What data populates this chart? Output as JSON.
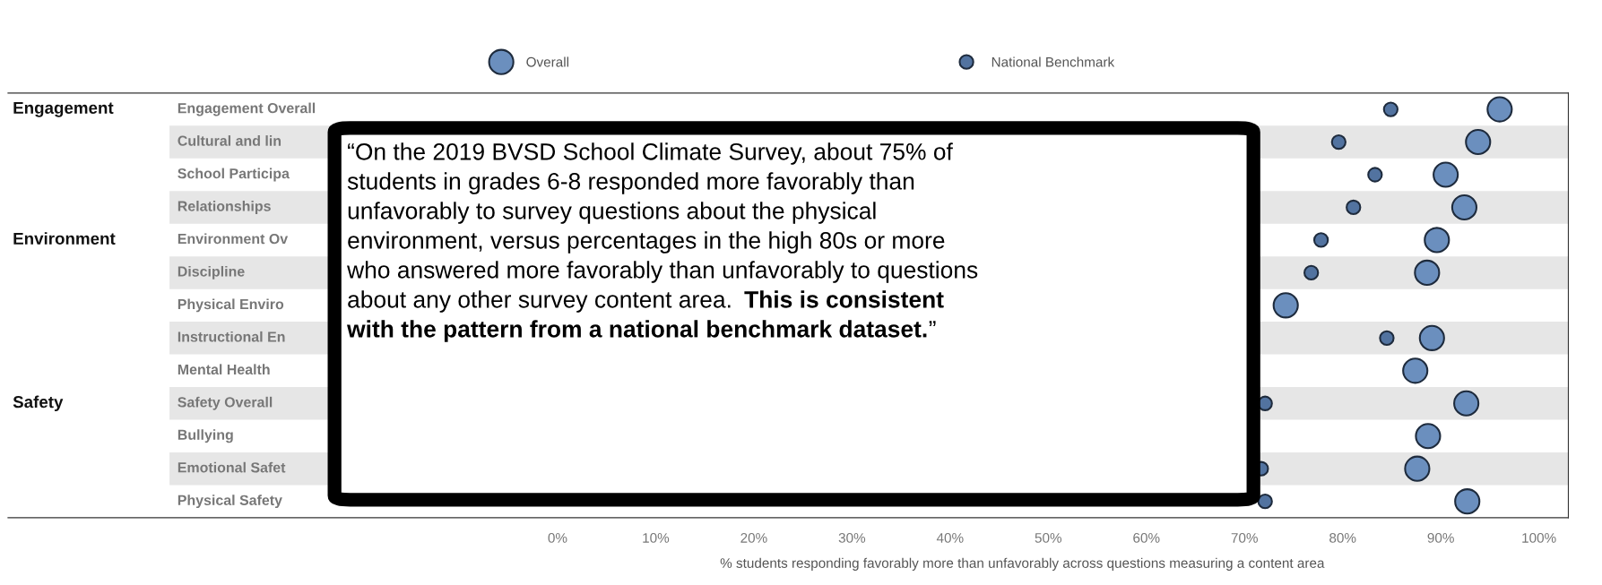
{
  "chart_data": {
    "type": "scatter",
    "orientation": "horizontal",
    "categories": [
      "Engagement Overall",
      "Cultural and lin",
      "School Participa",
      "Relationships",
      "Environment Ov",
      "Discipline",
      "Physical Enviro",
      "Instructional En",
      "Mental Health",
      "Safety Overall",
      "Bullying",
      "Emotional Safet",
      "Physical Safety"
    ],
    "series": [
      {
        "name": "Overall",
        "color": "#6b8fbe",
        "values": [
          96.0,
          93.8,
          90.5,
          92.4,
          89.6,
          88.6,
          74.2,
          89.1,
          87.4,
          92.6,
          88.7,
          87.6,
          92.7
        ]
      },
      {
        "name": "National Benchmark",
        "color": "#5273a0",
        "values": [
          84.9,
          79.6,
          83.3,
          81.1,
          77.8,
          76.8,
          null,
          84.5,
          null,
          72.1,
          null,
          71.7,
          72.1
        ]
      }
    ],
    "xlabel": "% students responding favorably more than unfavorably across questions measuring a content area",
    "xlim": [
      -56,
      103
    ],
    "xticks": [
      {
        "value": 0,
        "label": "0%"
      },
      {
        "value": 10,
        "label": "10%"
      },
      {
        "value": 20,
        "label": "20%"
      },
      {
        "value": 30,
        "label": "30%"
      },
      {
        "value": 40,
        "label": "40%"
      },
      {
        "value": 50,
        "label": "50%"
      },
      {
        "value": 60,
        "label": "60%"
      },
      {
        "value": 70,
        "label": "70%"
      },
      {
        "value": 80,
        "label": "80%"
      },
      {
        "value": 90,
        "label": "90%"
      },
      {
        "value": 100,
        "label": "100%"
      }
    ],
    "legend": "top",
    "marker": "circle",
    "grid": false,
    "tick_labels": "x",
    "annotations": [
      "Engagement",
      "Environment",
      "Safety",
      "“On the 2019 BVSD School Climate Survey, about 75% of\nstudents in grades 6-8 responded more favorably than\nunfavorably to survey questions about the physical\nenvironment, versus percentages in the high 80s or more\nwho answered more favorably than unfavorably to questions\nabout any other survey content area. ",
      "This is consistent\nwith the pattern from a national benchmark dataset.",
      "”"
    ]
  }
}
